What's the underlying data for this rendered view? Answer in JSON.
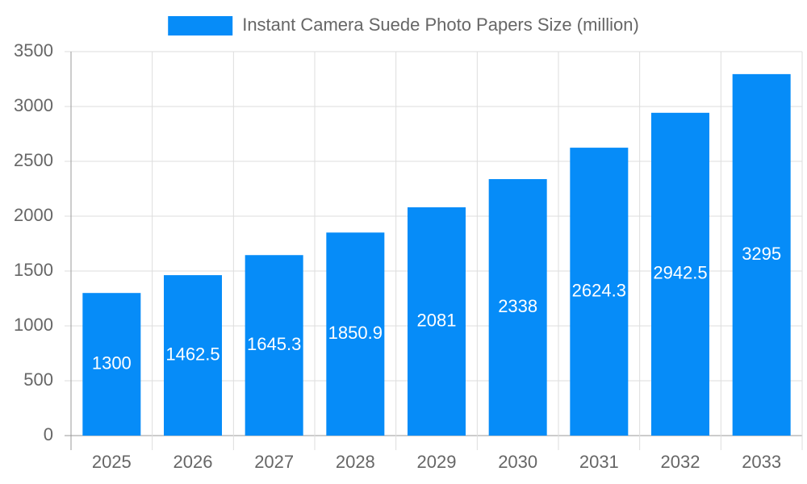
{
  "chart_data": {
    "type": "bar",
    "categories": [
      "2025",
      "2026",
      "2027",
      "2028",
      "2029",
      "2030",
      "2031",
      "2032",
      "2033"
    ],
    "series": [
      {
        "name": "Instant Camera Suede Photo Papers Size (million)",
        "color": "#068cf8",
        "values": [
          1300,
          1462.5,
          1645.3,
          1850.9,
          2081,
          2338,
          2624.3,
          2942.5,
          3295
        ]
      }
    ],
    "ylim": [
      0,
      3500
    ],
    "yticks": [
      0,
      500,
      1000,
      1500,
      2000,
      2500,
      3000,
      3500
    ],
    "grid": true,
    "legend": "top"
  }
}
